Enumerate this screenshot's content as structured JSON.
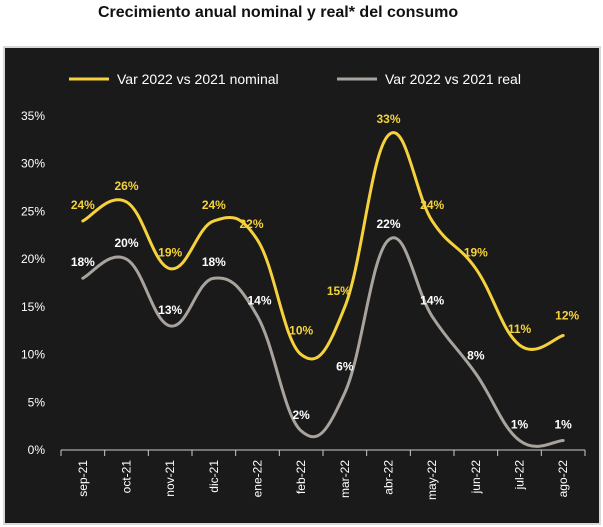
{
  "title": "Crecimiento anual nominal y real* del consumo",
  "colors": {
    "nominal": "#f5d23b",
    "real": "#a9a39d",
    "background": "#1a1a1a",
    "text": "#ffffff"
  },
  "chart_data": {
    "type": "line",
    "title": "Crecimiento anual nominal y real* del consumo",
    "xlabel": "",
    "ylabel": "",
    "ylim": [
      0,
      35
    ],
    "yticks": [
      "0%",
      "5%",
      "10%",
      "15%",
      "20%",
      "25%",
      "30%",
      "35%"
    ],
    "grid": false,
    "legend_position": "top",
    "categories": [
      "sep-21",
      "oct-21",
      "nov-21",
      "dic-21",
      "ene-22",
      "feb-22",
      "mar-22",
      "abr-22",
      "may-22",
      "jun-22",
      "jul-22",
      "ago-22"
    ],
    "series": [
      {
        "name": "Var 2022 vs 2021 nominal",
        "values": [
          24,
          26,
          19,
          24,
          22,
          10,
          15,
          33,
          24,
          19,
          11,
          12
        ],
        "labels": [
          "24%",
          "26%",
          "19%",
          "24%",
          "22%",
          "10%",
          "15%",
          "33%",
          "24%",
          "19%",
          "11%",
          "12%"
        ]
      },
      {
        "name": "Var 2022 vs 2021 real",
        "values": [
          18,
          20,
          13,
          18,
          14,
          2,
          6,
          22,
          14,
          8,
          1,
          1
        ],
        "labels": [
          "18%",
          "20%",
          "13%",
          "18%",
          "14%",
          "2%",
          "6%",
          "22%",
          "14%",
          "8%",
          "1%",
          "1%"
        ]
      }
    ]
  }
}
